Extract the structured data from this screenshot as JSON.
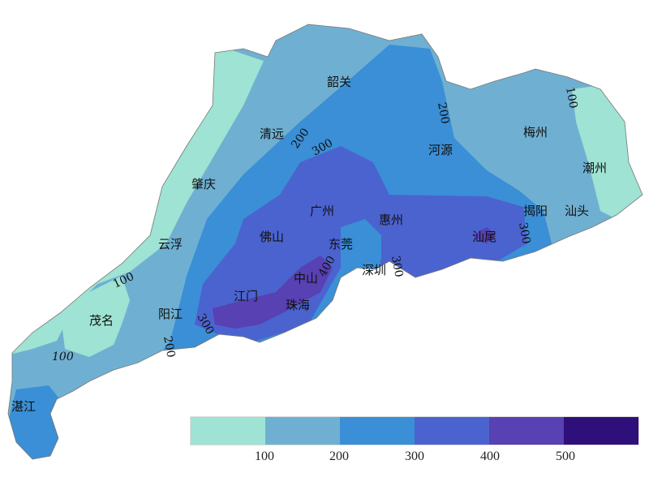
{
  "map": {
    "cities": [
      {
        "name": "韶关"
      },
      {
        "name": "清远"
      },
      {
        "name": "河源"
      },
      {
        "name": "梅州"
      },
      {
        "name": "潮州"
      },
      {
        "name": "肇庆"
      },
      {
        "name": "广州"
      },
      {
        "name": "惠州"
      },
      {
        "name": "揭阳"
      },
      {
        "name": "汕头"
      },
      {
        "name": "云浮"
      },
      {
        "name": "佛山"
      },
      {
        "name": "东莞"
      },
      {
        "name": "汕尾"
      },
      {
        "name": "中山"
      },
      {
        "name": "深圳"
      },
      {
        "name": "江门"
      },
      {
        "name": "珠海"
      },
      {
        "name": "阳江"
      },
      {
        "name": "茂名"
      },
      {
        "name": "湛江"
      }
    ],
    "contour_labels": [
      "100",
      "100",
      "100",
      "200",
      "200",
      "200",
      "300",
      "300",
      "300",
      "300",
      "400"
    ]
  },
  "legend": {
    "colors": [
      "#9ee3d3",
      "#6fb0d2",
      "#3a8fd6",
      "#4b63cf",
      "#5741b3",
      "#2f0f7a"
    ],
    "ticks": [
      "100",
      "200",
      "300",
      "400",
      "500"
    ]
  }
}
